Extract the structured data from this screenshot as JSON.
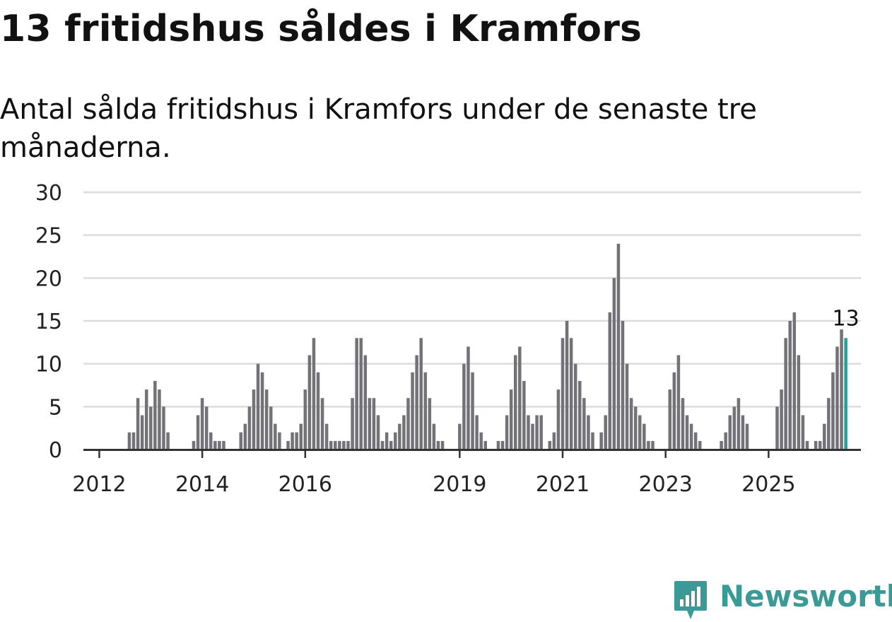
{
  "title": "13 fritidshus såldes i Kramfors",
  "subtitle": "Antal sålda fritidshus i Kramfors under de senaste tre månaderna.",
  "brand": {
    "name": "Newsworthy",
    "color": "#3b9a95",
    "icon": "bar-chart-pin-icon"
  },
  "chart_data": {
    "type": "bar",
    "ylim": [
      0,
      30
    ],
    "yticks": [
      0,
      5,
      10,
      15,
      20,
      25,
      30
    ],
    "grid": true,
    "xaxis_labels": [
      {
        "label": "2012",
        "index": 3
      },
      {
        "label": "2014",
        "index": 27
      },
      {
        "label": "2016",
        "index": 51
      },
      {
        "label": "2019",
        "index": 87
      },
      {
        "label": "2021",
        "index": 111
      },
      {
        "label": "2023",
        "index": 135
      },
      {
        "label": "2025",
        "index": 159
      }
    ],
    "values": [
      0,
      0,
      0,
      0,
      0,
      0,
      0,
      0,
      0,
      0,
      2,
      2,
      6,
      4,
      7,
      5,
      8,
      7,
      5,
      2,
      0,
      0,
      0,
      0,
      0,
      1,
      4,
      6,
      5,
      2,
      1,
      1,
      1,
      0,
      0,
      0,
      2,
      3,
      5,
      7,
      10,
      9,
      7,
      5,
      3,
      2,
      0,
      1,
      2,
      2,
      3,
      7,
      11,
      13,
      9,
      6,
      3,
      1,
      1,
      1,
      1,
      1,
      6,
      13,
      13,
      11,
      6,
      6,
      4,
      1,
      2,
      1,
      2,
      3,
      4,
      6,
      9,
      11,
      13,
      9,
      6,
      3,
      1,
      1,
      0,
      0,
      0,
      3,
      10,
      12,
      9,
      4,
      2,
      1,
      0,
      0,
      1,
      1,
      4,
      7,
      11,
      12,
      8,
      4,
      3,
      4,
      4,
      0,
      1,
      2,
      7,
      13,
      15,
      13,
      10,
      8,
      6,
      4,
      2,
      0,
      2,
      4,
      16,
      20,
      24,
      15,
      10,
      6,
      5,
      4,
      3,
      1,
      1,
      0,
      0,
      0,
      7,
      9,
      11,
      6,
      4,
      3,
      2,
      1,
      0,
      0,
      0,
      0,
      1,
      2,
      4,
      5,
      6,
      4,
      3,
      0,
      0,
      0,
      0,
      0,
      0,
      5,
      7,
      13,
      15,
      16,
      11,
      4,
      1,
      0,
      1,
      1,
      3,
      6,
      9,
      12,
      14,
      13
    ],
    "highlight_color": "#2a9d96",
    "bar_color": "#737277",
    "last_value_label": "13"
  }
}
